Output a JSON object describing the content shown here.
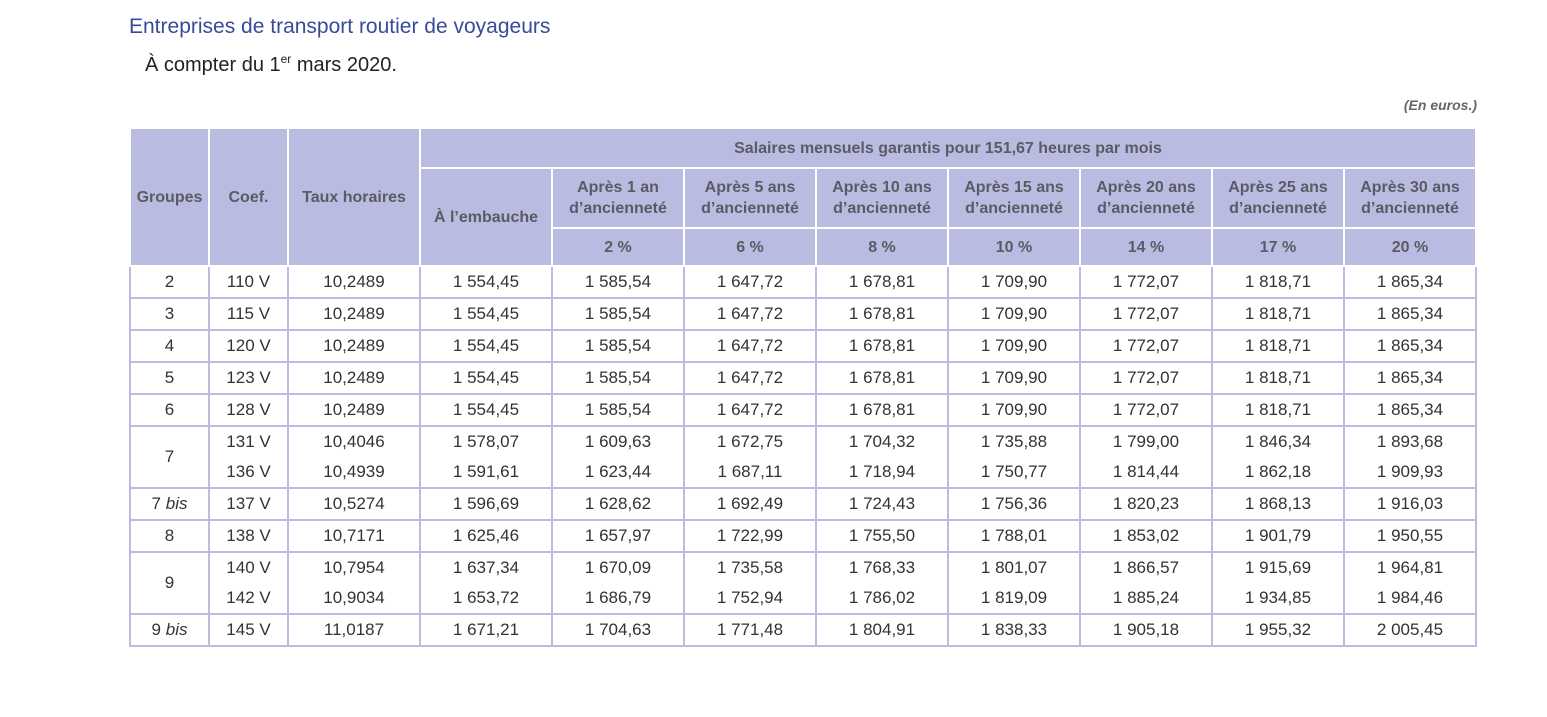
{
  "title": "Entreprises de transport routier de voyageurs",
  "subtitle": {
    "prefix": "À compter du 1",
    "sup": "er",
    "suffix": " mars 2020."
  },
  "unit_note": "(En euros.)",
  "table": {
    "col_groupes": "Groupes",
    "col_coef": "Coef.",
    "col_taux": "Taux horaires",
    "group_header": "Salaires mensuels garantis pour 151,67 heures par mois",
    "embauche": "À l’embauche",
    "seniority": [
      {
        "label1": "Après 1 an",
        "label2": "d’ancienneté",
        "pct": "2 %"
      },
      {
        "label1": "Après 5 ans",
        "label2": "d’ancienneté",
        "pct": "6 %"
      },
      {
        "label1": "Après 10 ans",
        "label2": "d’ancienneté",
        "pct": "8 %"
      },
      {
        "label1": "Après 15 ans",
        "label2": "d’ancienneté",
        "pct": "10 %"
      },
      {
        "label1": "Après 20 ans",
        "label2": "d’ancienneté",
        "pct": "14 %"
      },
      {
        "label1": "Après 25 ans",
        "label2": "d’ancienneté",
        "pct": "17 %"
      },
      {
        "label1": "Après 30 ans",
        "label2": "d’ancienneté",
        "pct": "20 %"
      }
    ],
    "rows": [
      {
        "group": "2",
        "group_suffix": "",
        "span": 1,
        "coef": "110 V",
        "taux": "10,2489",
        "vals": [
          "1 554,45",
          "1 585,54",
          "1 647,72",
          "1 678,81",
          "1 709,90",
          "1 772,07",
          "1 818,71",
          "1 865,34"
        ]
      },
      {
        "group": "3",
        "group_suffix": "",
        "span": 1,
        "coef": "115 V",
        "taux": "10,2489",
        "vals": [
          "1 554,45",
          "1 585,54",
          "1 647,72",
          "1 678,81",
          "1 709,90",
          "1 772,07",
          "1 818,71",
          "1 865,34"
        ]
      },
      {
        "group": "4",
        "group_suffix": "",
        "span": 1,
        "coef": "120 V",
        "taux": "10,2489",
        "vals": [
          "1 554,45",
          "1 585,54",
          "1 647,72",
          "1 678,81",
          "1 709,90",
          "1 772,07",
          "1 818,71",
          "1 865,34"
        ]
      },
      {
        "group": "5",
        "group_suffix": "",
        "span": 1,
        "coef": "123 V",
        "taux": "10,2489",
        "vals": [
          "1 554,45",
          "1 585,54",
          "1 647,72",
          "1 678,81",
          "1 709,90",
          "1 772,07",
          "1 818,71",
          "1 865,34"
        ]
      },
      {
        "group": "6",
        "group_suffix": "",
        "span": 1,
        "coef": "128 V",
        "taux": "10,2489",
        "vals": [
          "1 554,45",
          "1 585,54",
          "1 647,72",
          "1 678,81",
          "1 709,90",
          "1 772,07",
          "1 818,71",
          "1 865,34"
        ]
      },
      {
        "group": "7",
        "group_suffix": "",
        "span": 2,
        "coef": "131 V",
        "taux": "10,4046",
        "vals": [
          "1 578,07",
          "1 609,63",
          "1 672,75",
          "1 704,32",
          "1 735,88",
          "1 799,00",
          "1 846,34",
          "1 893,68"
        ]
      },
      {
        "group": null,
        "group_suffix": "",
        "span": 0,
        "coef": "136 V",
        "taux": "10,4939",
        "vals": [
          "1 591,61",
          "1 623,44",
          "1 687,11",
          "1 718,94",
          "1 750,77",
          "1 814,44",
          "1 862,18",
          "1 909,93"
        ]
      },
      {
        "group": "7",
        "group_suffix": "bis",
        "span": 1,
        "coef": "137 V",
        "taux": "10,5274",
        "vals": [
          "1 596,69",
          "1 628,62",
          "1 692,49",
          "1 724,43",
          "1 756,36",
          "1 820,23",
          "1 868,13",
          "1 916,03"
        ]
      },
      {
        "group": "8",
        "group_suffix": "",
        "span": 1,
        "coef": "138 V",
        "taux": "10,7171",
        "vals": [
          "1 625,46",
          "1 657,97",
          "1 722,99",
          "1 755,50",
          "1 788,01",
          "1 853,02",
          "1 901,79",
          "1 950,55"
        ]
      },
      {
        "group": "9",
        "group_suffix": "",
        "span": 2,
        "coef": "140 V",
        "taux": "10,7954",
        "vals": [
          "1 637,34",
          "1 670,09",
          "1 735,58",
          "1 768,33",
          "1 801,07",
          "1 866,57",
          "1 915,69",
          "1 964,81"
        ]
      },
      {
        "group": null,
        "group_suffix": "",
        "span": 0,
        "coef": "142 V",
        "taux": "10,9034",
        "vals": [
          "1 653,72",
          "1 686,79",
          "1 752,94",
          "1 786,02",
          "1 819,09",
          "1 885,24",
          "1 934,85",
          "1 984,46"
        ]
      },
      {
        "group": "9",
        "group_suffix": "bis",
        "span": 1,
        "coef": "145 V",
        "taux": "11,0187",
        "vals": [
          "1 671,21",
          "1 704,63",
          "1 771,48",
          "1 804,91",
          "1 838,33",
          "1 905,18",
          "1 955,32",
          "2 005,45"
        ]
      }
    ]
  }
}
